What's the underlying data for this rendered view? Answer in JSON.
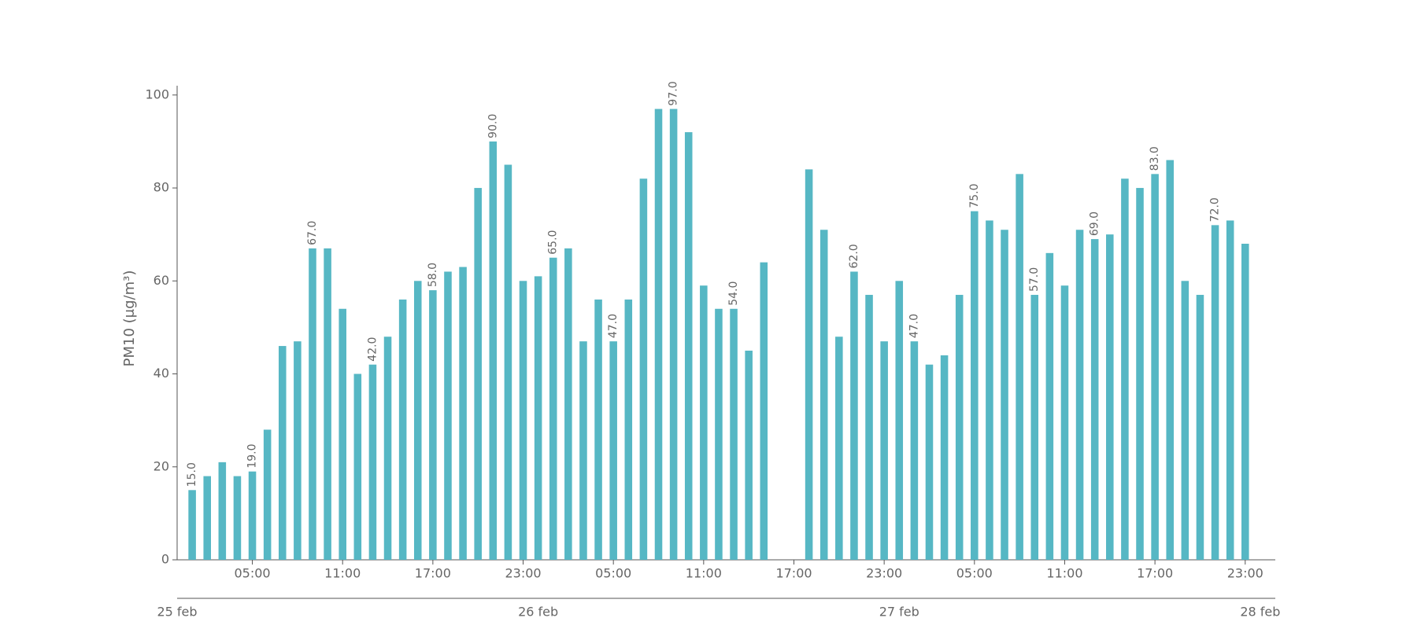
{
  "chart_data": {
    "type": "bar",
    "y_label": "PM10 (μg/m³)",
    "color": "#56b7c4",
    "categories": [
      null,
      null,
      null,
      null,
      "05:00",
      null,
      null,
      null,
      null,
      null,
      "11:00",
      null,
      null,
      null,
      null,
      null,
      "17:00",
      null,
      null,
      null,
      null,
      null,
      "23:00",
      null,
      null,
      null,
      null,
      null,
      "05:00",
      null,
      null,
      null,
      null,
      null,
      "11:00",
      null,
      null,
      null,
      null,
      null,
      "17:00",
      null,
      null,
      null,
      null,
      null,
      "23:00",
      null,
      null,
      null,
      null,
      null,
      "05:00",
      null,
      null,
      null,
      null,
      null,
      "11:00",
      null,
      null,
      null,
      null,
      null,
      "17:00",
      null,
      null,
      null,
      null,
      null,
      "23:00"
    ],
    "values": [
      15,
      18,
      21,
      18,
      19,
      28,
      46,
      47,
      67,
      67,
      54,
      40,
      42,
      48,
      56,
      60,
      58,
      62,
      63,
      80,
      90,
      85,
      60,
      61,
      65,
      67,
      47,
      56,
      47,
      56,
      82,
      97,
      97,
      92,
      59,
      54,
      54,
      45,
      64,
      null,
      null,
      84,
      71,
      48,
      62,
      57,
      47,
      60,
      47,
      42,
      44,
      57,
      75,
      73,
      71,
      83,
      57,
      66,
      59,
      71,
      69,
      70,
      82,
      80,
      83,
      86,
      60,
      57,
      72,
      73,
      68
    ],
    "value_labels": [
      "15.0",
      null,
      null,
      null,
      "19.0",
      null,
      null,
      null,
      "67.0",
      null,
      null,
      null,
      "42.0",
      null,
      null,
      null,
      "58.0",
      null,
      null,
      null,
      "90.0",
      null,
      null,
      null,
      "65.0",
      null,
      null,
      null,
      "47.0",
      null,
      null,
      null,
      "97.0",
      null,
      null,
      null,
      "54.0",
      null,
      null,
      null,
      null,
      null,
      null,
      null,
      "62.0",
      null,
      null,
      null,
      "47.0",
      null,
      null,
      null,
      "75.0",
      null,
      null,
      null,
      "57.0",
      null,
      null,
      null,
      "69.0",
      null,
      null,
      null,
      "83.0",
      null,
      null,
      null,
      "72.0",
      null,
      null
    ],
    "date_labels": [
      "25 feb",
      "26 feb",
      "27 feb",
      "28 feb"
    ],
    "ylim": [
      0,
      102
    ],
    "yticks": [
      0,
      20,
      40,
      60,
      80,
      100
    ]
  }
}
